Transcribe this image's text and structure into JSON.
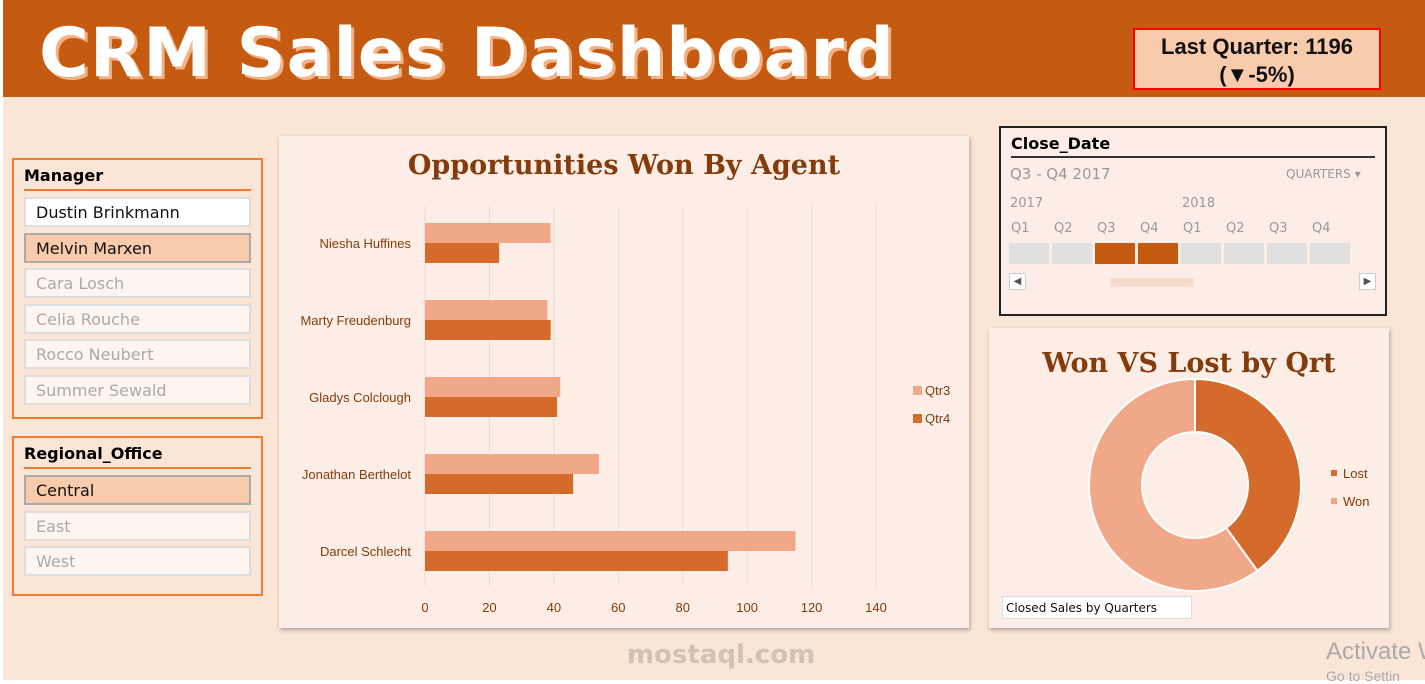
{
  "header": {
    "title": "CRM Sales Dashboard",
    "kpi_line1": "Last Quarter: 1196",
    "kpi_line2": "(▼-5%)"
  },
  "manager_slicer": {
    "title": "Manager",
    "items": [
      {
        "label": "Dustin Brinkmann",
        "state": "available"
      },
      {
        "label": "Melvin Marxen",
        "state": "selected"
      },
      {
        "label": "Cara Losch",
        "state": "unavailable"
      },
      {
        "label": "Celia Rouche",
        "state": "unavailable"
      },
      {
        "label": "Rocco Neubert",
        "state": "unavailable"
      },
      {
        "label": "Summer Sewald",
        "state": "unavailable"
      }
    ]
  },
  "office_slicer": {
    "title": "Regional_Office",
    "items": [
      {
        "label": "Central",
        "state": "selected"
      },
      {
        "label": "East",
        "state": "unavailable"
      },
      {
        "label": "West",
        "state": "unavailable"
      }
    ]
  },
  "timeline": {
    "title": "Close_Date",
    "range": "Q3 - Q4 2017",
    "level": "QUARTERS",
    "years": [
      "2017",
      "2018"
    ],
    "quarters": [
      "Q1",
      "Q2",
      "Q3",
      "Q4",
      "Q1",
      "Q2",
      "Q3",
      "Q4"
    ],
    "selected": [
      2,
      3
    ]
  },
  "chart_data": [
    {
      "type": "bar",
      "orientation": "horizontal",
      "title": "Opportunities Won By Agent",
      "categories": [
        "Niesha Huffines",
        "Marty Freudenburg",
        "Gladys Colclough",
        "Jonathan Berthelot",
        "Darcel Schlecht"
      ],
      "series": [
        {
          "name": "Qtr3",
          "values": [
            39,
            38,
            42,
            54,
            115
          ],
          "color": "#F0A889"
        },
        {
          "name": "Qtr4",
          "values": [
            23,
            39,
            41,
            46,
            94
          ],
          "color": "#D46B2A"
        }
      ],
      "xlim": [
        0,
        140
      ],
      "xticks": [
        0,
        20,
        40,
        60,
        80,
        100,
        120,
        140
      ],
      "grid": true,
      "legend": "right"
    },
    {
      "type": "pie",
      "variant": "donut",
      "title": "Won VS Lost by Qrt",
      "labels": [
        "Lost",
        "Won"
      ],
      "values": [
        40,
        60
      ],
      "colors": [
        "#D46B2A",
        "#F0A889"
      ],
      "legend": "right",
      "filter_label": "Closed Sales by Quarters"
    }
  ],
  "watermark": {
    "text": "mostaql.com",
    "windows": "Activate W",
    "windows2": "Go to Settin"
  }
}
